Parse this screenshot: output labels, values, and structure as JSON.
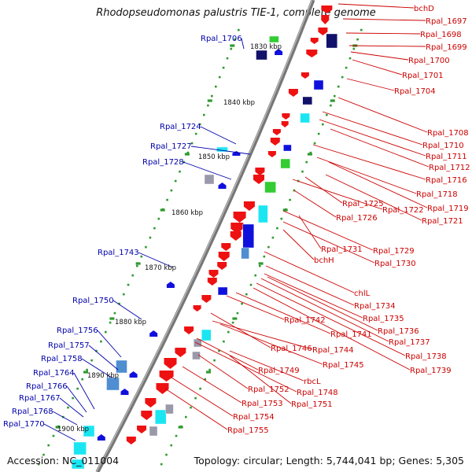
{
  "title": "Rhodopseudomonas palustris TIE-1, complete genome",
  "accession": "Accession: NC_011004",
  "topology": "Topology: circular; Length: 5,744,041 bp; Genes: 5,305",
  "colors": {
    "backbone": "#777777",
    "label_forward": "#cc0000",
    "label_reverse": "#0000aa",
    "tick": "#2f9a2f",
    "gene_red": "#ee1111",
    "gene_blue": "#1010dd",
    "gene_navy": "#11116a",
    "gene_cyan": "#1ae6f2",
    "gene_green": "#33cc33",
    "gene_steel": "#4f8ed0",
    "gene_gray": "#9999aa"
  },
  "scale_labels": [
    "1830 kbp",
    "1840 kbp",
    "1850 kbp",
    "1860 kbp",
    "1870 kbp",
    "1880 kbp",
    "1890 kbp",
    "1900 kbp"
  ],
  "right_labels": [
    "bchD",
    "Rpal_1697",
    "Rpal_1698",
    "Rpal_1699",
    "Rpal_1700",
    "Rpal_1701",
    "Rpal_1704",
    "Rpal_1708",
    "Rpal_1710",
    "Rpal_1711",
    "Rpal_1712",
    "Rpal_1716",
    "Rpal_1718",
    "Rpal_1719",
    "Rpal_1721",
    "Rpal_1722",
    "Rpal_1725",
    "Rpal_1726",
    "Rpal_1729",
    "Rpal_1730",
    "Rpal_1731",
    "bchH",
    "chlL",
    "Rpal_1734",
    "Rpal_1735",
    "Rpal_1736",
    "Rpal_1737",
    "Rpal_1738",
    "Rpal_1739",
    "Rpal_1741",
    "Rpal_1742",
    "Rpal_1744",
    "Rpal_1745",
    "Rpal_1746",
    "Rpal_1748",
    "Rpal_1749",
    "rbcL",
    "Rpal_1751",
    "Rpal_1752",
    "Rpal_1753",
    "Rpal_1754",
    "Rpal_1755"
  ],
  "left_labels": [
    "Rpal_1706",
    "Rpal_1724",
    "Rpal_1727",
    "Rpal_1728",
    "Rpal_1743",
    "Rpal_1750",
    "Rpal_1756",
    "Rpal_1757",
    "Rpal_1758",
    "Rpal_1764",
    "Rpal_1766",
    "Rpal_1767",
    "Rpal_1768",
    "Rpal_1770"
  ]
}
